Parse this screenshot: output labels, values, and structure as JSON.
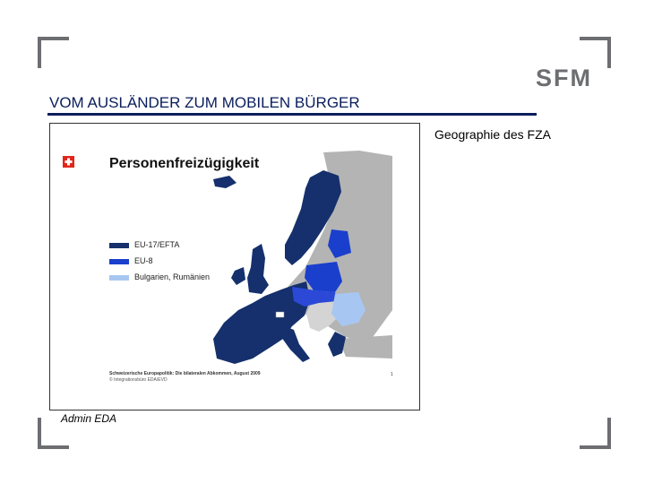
{
  "logo": {
    "text": "SFM"
  },
  "slide": {
    "title": "VOM AUSLÄNDER ZUM MOBILEN BÜRGER",
    "subtitle": "Geographie des FZA",
    "credit": "Admin EDA"
  },
  "figure": {
    "title": "Personenfreizügigkeit",
    "legend": [
      {
        "label": "EU-17/EFTA",
        "color": "#15306c"
      },
      {
        "label": "EU-8",
        "color": "#1a3fcc"
      },
      {
        "label": "Bulgarien, Rumänien",
        "color": "#a7c7f2"
      }
    ],
    "footer_line1": "Schweizerische Europapolitik: Die bilateralen Abkommen, August 2009",
    "footer_line2": "© Integrationsbüro EDA/EVD",
    "page_number": "1",
    "colors": {
      "land": "#d4d4d4",
      "outside": "#b4b4b4",
      "sea": "#ffffff"
    }
  }
}
